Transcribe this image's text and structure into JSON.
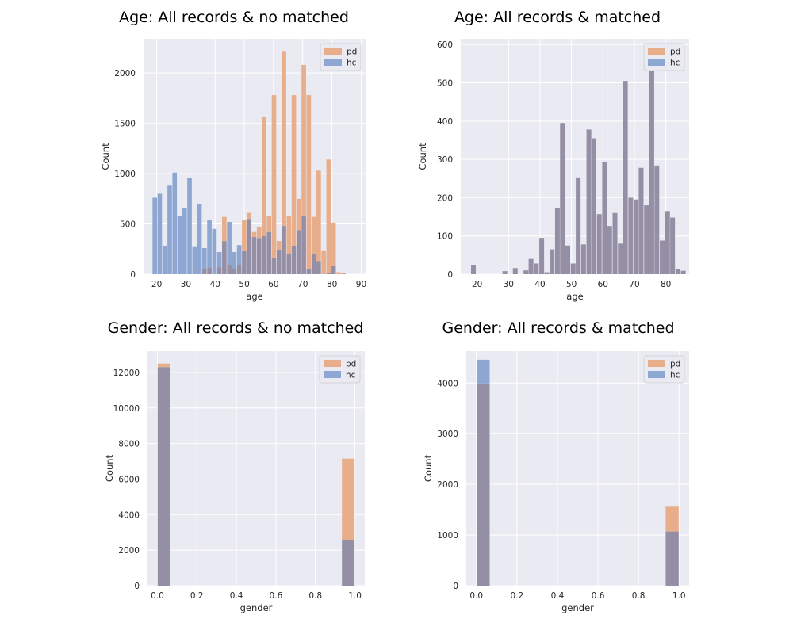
{
  "chart_data": [
    {
      "type": "histogram",
      "title": "Age: All records & no matched",
      "xlabel": "age",
      "ylabel": "Count",
      "xlim": [
        15.5,
        91.5
      ],
      "ylim": [
        0,
        2340
      ],
      "xticks": [
        20,
        30,
        40,
        50,
        60,
        70,
        80,
        90
      ],
      "yticks": [
        0,
        500,
        1000,
        1500,
        2000
      ],
      "legend": {
        "placement": "top-right",
        "entries": [
          "pd",
          "hc"
        ]
      },
      "grid": true,
      "bin_width": 1.7,
      "series": [
        {
          "name": "pd",
          "color": "#dd8452",
          "bins": [
            [
              35.5,
              50
            ],
            [
              37.2,
              70
            ],
            [
              40.6,
              70
            ],
            [
              42.3,
              570
            ],
            [
              44.0,
              100
            ],
            [
              45.7,
              50
            ],
            [
              47.4,
              90
            ],
            [
              49.1,
              540
            ],
            [
              50.8,
              610
            ],
            [
              52.5,
              420
            ],
            [
              54.2,
              470
            ],
            [
              55.9,
              1560
            ],
            [
              57.6,
              580
            ],
            [
              59.3,
              1780
            ],
            [
              61.0,
              330
            ],
            [
              62.7,
              2220
            ],
            [
              64.4,
              580
            ],
            [
              66.1,
              1780
            ],
            [
              67.8,
              750
            ],
            [
              69.5,
              2080
            ],
            [
              71.2,
              1780
            ],
            [
              72.9,
              570
            ],
            [
              74.6,
              1030
            ],
            [
              76.3,
              230
            ],
            [
              78.0,
              1140
            ],
            [
              79.7,
              510
            ],
            [
              81.4,
              20
            ],
            [
              83.1,
              8
            ]
          ]
        },
        {
          "name": "hc",
          "color": "#4c72b0",
          "bins": [
            [
              18.5,
              760
            ],
            [
              20.2,
              800
            ],
            [
              21.9,
              280
            ],
            [
              23.6,
              880
            ],
            [
              25.3,
              1010
            ],
            [
              27.0,
              580
            ],
            [
              28.7,
              660
            ],
            [
              30.4,
              960
            ],
            [
              32.1,
              270
            ],
            [
              33.8,
              700
            ],
            [
              35.5,
              260
            ],
            [
              37.2,
              540
            ],
            [
              38.9,
              450
            ],
            [
              40.6,
              220
            ],
            [
              42.3,
              330
            ],
            [
              44.0,
              520
            ],
            [
              45.7,
              220
            ],
            [
              47.4,
              290
            ],
            [
              49.1,
              230
            ],
            [
              50.8,
              550
            ],
            [
              52.5,
              370
            ],
            [
              54.2,
              360
            ],
            [
              55.9,
              380
            ],
            [
              57.6,
              420
            ],
            [
              59.3,
              160
            ],
            [
              61.0,
              240
            ],
            [
              62.7,
              480
            ],
            [
              64.4,
              200
            ],
            [
              66.1,
              280
            ],
            [
              67.8,
              440
            ],
            [
              69.5,
              580
            ],
            [
              71.2,
              50
            ],
            [
              72.9,
              200
            ],
            [
              74.6,
              130
            ],
            [
              78.0,
              10
            ],
            [
              79.7,
              80
            ],
            [
              83.1,
              5
            ]
          ]
        }
      ]
    },
    {
      "type": "histogram",
      "title": "Age: All records & matched",
      "xlabel": "age",
      "ylabel": "Count",
      "xlim": [
        14.8,
        87.4
      ],
      "ylim": [
        0,
        615
      ],
      "xticks": [
        20,
        30,
        40,
        50,
        60,
        70,
        80
      ],
      "yticks": [
        0,
        100,
        200,
        300,
        400,
        500,
        600
      ],
      "legend": {
        "placement": "top-right",
        "entries": [
          "pd",
          "hc"
        ]
      },
      "grid": true,
      "bin_width": 1.67,
      "series": [
        {
          "name": "pd",
          "color": "#dd8452",
          "bins": [
            [
              18.0,
              23
            ],
            [
              28.0,
              8
            ],
            [
              31.3,
              16
            ],
            [
              34.7,
              10
            ],
            [
              36.3,
              40
            ],
            [
              38.0,
              28
            ],
            [
              39.7,
              95
            ],
            [
              41.3,
              5
            ],
            [
              43.0,
              65
            ],
            [
              44.7,
              172
            ],
            [
              46.3,
              395
            ],
            [
              48.0,
              75
            ],
            [
              49.7,
              28
            ],
            [
              51.3,
              253
            ],
            [
              53.0,
              78
            ],
            [
              54.7,
              378
            ],
            [
              56.3,
              355
            ],
            [
              58.0,
              157
            ],
            [
              59.7,
              293
            ],
            [
              61.3,
              126
            ],
            [
              63.0,
              160
            ],
            [
              64.7,
              80
            ],
            [
              66.3,
              505
            ],
            [
              68.0,
              200
            ],
            [
              69.7,
              195
            ],
            [
              71.3,
              278
            ],
            [
              73.0,
              180
            ],
            [
              74.7,
              585
            ],
            [
              76.3,
              284
            ],
            [
              78.0,
              88
            ],
            [
              79.7,
              165
            ],
            [
              81.3,
              148
            ],
            [
              83.0,
              13
            ],
            [
              84.7,
              9
            ]
          ]
        },
        {
          "name": "hc",
          "color": "#4c72b0",
          "bins": [
            [
              18.0,
              23
            ],
            [
              28.0,
              8
            ],
            [
              31.3,
              16
            ],
            [
              34.7,
              10
            ],
            [
              36.3,
              40
            ],
            [
              38.0,
              28
            ],
            [
              39.7,
              95
            ],
            [
              41.3,
              5
            ],
            [
              43.0,
              65
            ],
            [
              44.7,
              172
            ],
            [
              46.3,
              395
            ],
            [
              48.0,
              75
            ],
            [
              49.7,
              28
            ],
            [
              51.3,
              253
            ],
            [
              53.0,
              78
            ],
            [
              54.7,
              378
            ],
            [
              56.3,
              355
            ],
            [
              58.0,
              157
            ],
            [
              59.7,
              293
            ],
            [
              61.3,
              126
            ],
            [
              63.0,
              160
            ],
            [
              64.7,
              80
            ],
            [
              66.3,
              505
            ],
            [
              68.0,
              200
            ],
            [
              69.7,
              195
            ],
            [
              71.3,
              278
            ],
            [
              73.0,
              180
            ],
            [
              74.7,
              585
            ],
            [
              76.3,
              284
            ],
            [
              78.0,
              88
            ],
            [
              79.7,
              165
            ],
            [
              81.3,
              148
            ],
            [
              83.0,
              13
            ],
            [
              84.7,
              9
            ]
          ]
        }
      ]
    },
    {
      "type": "histogram",
      "title": "Gender: All records & no matched",
      "xlabel": "gender",
      "ylabel": "Count",
      "xlim": [
        -0.05,
        1.05
      ],
      "ylim": [
        0,
        13200
      ],
      "xticks": [
        0.0,
        0.2,
        0.4,
        0.6,
        0.8,
        1.0
      ],
      "xtick_labels": [
        "0.0",
        "0.2",
        "0.4",
        "0.6",
        "0.8",
        "1.0"
      ],
      "yticks": [
        0,
        2000,
        4000,
        6000,
        8000,
        10000,
        12000
      ],
      "legend": {
        "placement": "top-right",
        "entries": [
          "pd",
          "hc"
        ]
      },
      "grid": true,
      "bin_width": 0.0667,
      "series": [
        {
          "name": "pd",
          "color": "#dd8452",
          "bins": [
            [
              0.0,
              12500
            ],
            [
              0.9333,
              7150
            ]
          ]
        },
        {
          "name": "hc",
          "color": "#4c72b0",
          "bins": [
            [
              0.0,
              12300
            ],
            [
              0.9333,
              2570
            ]
          ]
        }
      ]
    },
    {
      "type": "histogram",
      "title": "Gender: All records & matched",
      "xlabel": "gender",
      "ylabel": "Count",
      "xlim": [
        -0.05,
        1.05
      ],
      "ylim": [
        0,
        4630
      ],
      "xticks": [
        0.0,
        0.2,
        0.4,
        0.6,
        0.8,
        1.0
      ],
      "xtick_labels": [
        "0.0",
        "0.2",
        "0.4",
        "0.6",
        "0.8",
        "1.0"
      ],
      "yticks": [
        0,
        1000,
        2000,
        3000,
        4000
      ],
      "legend": {
        "placement": "top-right",
        "entries": [
          "pd",
          "hc"
        ]
      },
      "grid": true,
      "bin_width": 0.0667,
      "series": [
        {
          "name": "pd",
          "color": "#dd8452",
          "bins": [
            [
              0.0,
              3990
            ],
            [
              0.9333,
              1560
            ]
          ]
        },
        {
          "name": "hc",
          "color": "#4c72b0",
          "bins": [
            [
              0.0,
              4460
            ],
            [
              0.9333,
              1070
            ]
          ]
        }
      ]
    }
  ]
}
